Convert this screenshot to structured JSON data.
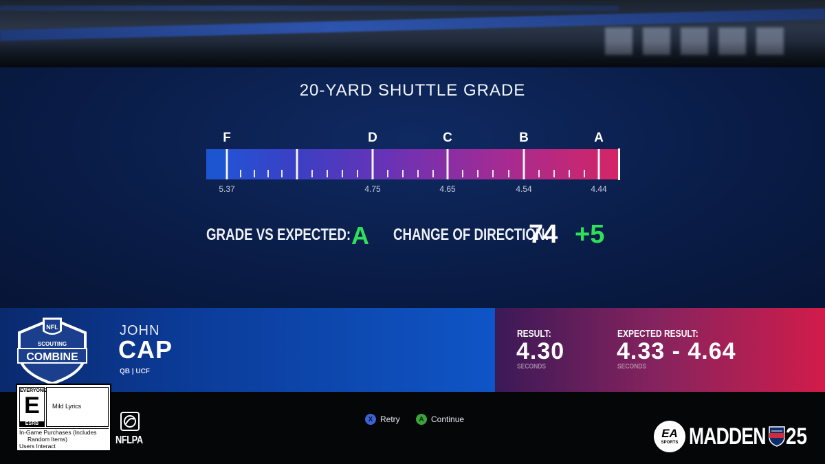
{
  "screen": {
    "title": "20-YARD SHUTTLE GRADE"
  },
  "grade_scale": {
    "letters": [
      "F",
      "D",
      "C",
      "B",
      "A"
    ],
    "thresholds": [
      "5.37",
      "4.75",
      "4.65",
      "4.54",
      "4.44"
    ]
  },
  "stats": {
    "grade_label": "GRADE VS EXPECTED:",
    "grade_value": "A",
    "cod_label": "CHANGE OF DIRECTION:",
    "cod_value": "74",
    "cod_bonus": "+5"
  },
  "player": {
    "first_name": "JOHN",
    "last_name": "CAP",
    "position_team": "QB | UCF"
  },
  "logo": {
    "nfl": "NFL",
    "scouting": "SCOUTING",
    "combine": "COMBINE"
  },
  "result": {
    "label": "RESULT:",
    "value": "4.30",
    "unit": "SECONDS"
  },
  "expected": {
    "label": "EXPECTED RESULT:",
    "value": "4.33 - 4.64",
    "unit": "SECONDS"
  },
  "prompts": {
    "retry_button": "X",
    "retry_label": "Retry",
    "continue_button": "A",
    "continue_label": "Continue"
  },
  "esrb": {
    "everyone": "EVERYONE",
    "rating": "E",
    "brand": "ESRB",
    "descriptor": "Mild Lyrics",
    "footer_line1": "In-Game Purchases (Includes",
    "footer_line2": "Random Items)",
    "footer_line3": "Users Interact"
  },
  "branding": {
    "nflpa": "NFLPA",
    "ea": "EA",
    "ea_sports": "SPORTS",
    "madden": "MADDEN",
    "madden_number": "25"
  },
  "colors": {
    "grade_green": "#2fe05a",
    "bar_start": "#1f57d8",
    "bar_end": "#d42566",
    "panel_blue": "#0a1d48"
  }
}
